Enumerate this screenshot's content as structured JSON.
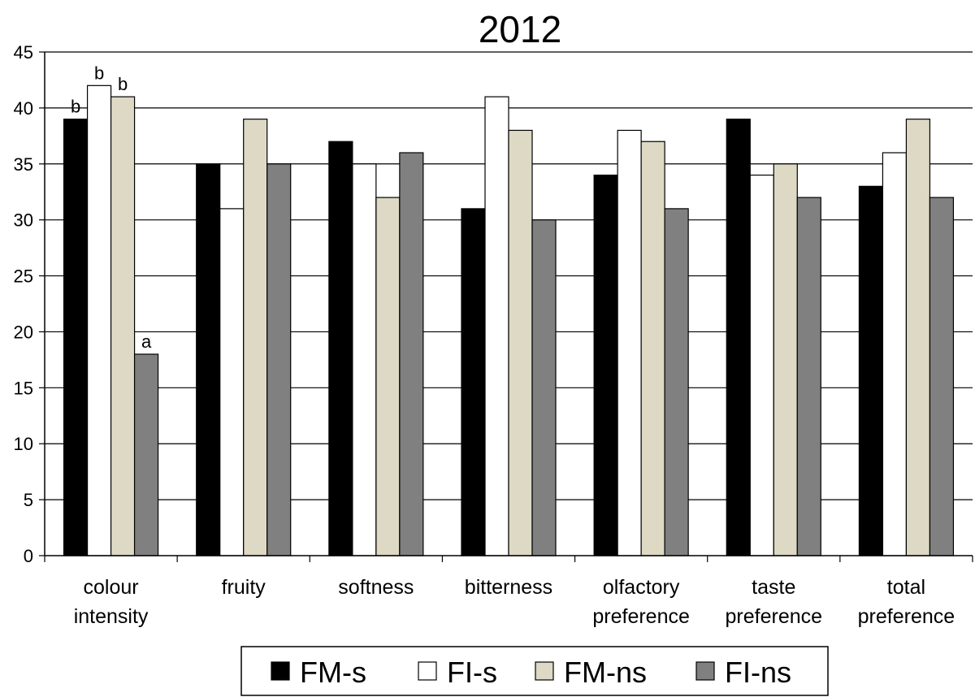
{
  "chart_data": {
    "type": "bar",
    "title": "2012",
    "xlabel": "",
    "ylabel": "",
    "ylim": [
      0,
      45
    ],
    "yticks": [
      "0",
      "5",
      "10",
      "15",
      "20",
      "25",
      "30",
      "35",
      "40",
      "45"
    ],
    "grid": true,
    "legend_position": "bottom",
    "categories": [
      [
        "colour",
        "intensity"
      ],
      [
        "fruity"
      ],
      [
        "softness"
      ],
      [
        "bitterness"
      ],
      [
        "olfactory",
        "preference"
      ],
      [
        "taste",
        "preference"
      ],
      [
        "total",
        "preference"
      ]
    ],
    "series": [
      {
        "name": "FM-s",
        "color": "#000000",
        "values": [
          39,
          35,
          37,
          31,
          34,
          39,
          33
        ]
      },
      {
        "name": "FI-s",
        "color": "#ffffff",
        "values": [
          42,
          31,
          35,
          41,
          38,
          34,
          36
        ]
      },
      {
        "name": "FM-ns",
        "color": "#ddd9c4",
        "values": [
          41,
          39,
          32,
          38,
          37,
          35,
          39
        ]
      },
      {
        "name": "FI-ns",
        "color": "#808080",
        "values": [
          18,
          35,
          36,
          30,
          31,
          32,
          32
        ]
      }
    ],
    "annotations": [
      {
        "category": 0,
        "series": 0,
        "text": "b"
      },
      {
        "category": 0,
        "series": 1,
        "text": "b"
      },
      {
        "category": 0,
        "series": 2,
        "text": "b"
      },
      {
        "category": 0,
        "series": 3,
        "text": "a"
      }
    ]
  }
}
